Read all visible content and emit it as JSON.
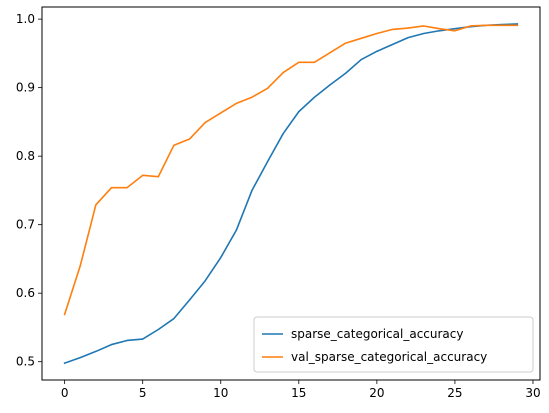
{
  "chart_data": {
    "type": "line",
    "x": [
      0,
      1,
      2,
      3,
      4,
      5,
      6,
      7,
      8,
      9,
      10,
      11,
      12,
      13,
      14,
      15,
      16,
      17,
      18,
      19,
      20,
      21,
      22,
      23,
      24,
      25,
      26,
      27,
      28,
      29
    ],
    "series": [
      {
        "name": "sparse_categorical_accuracy",
        "color": "#1f77b4",
        "values": [
          0.498,
          0.506,
          0.515,
          0.525,
          0.531,
          0.533,
          0.547,
          0.563,
          0.59,
          0.618,
          0.652,
          0.692,
          0.75,
          0.792,
          0.833,
          0.865,
          0.886,
          0.904,
          0.921,
          0.941,
          0.953,
          0.963,
          0.973,
          0.979,
          0.983,
          0.986,
          0.989,
          0.991,
          0.992,
          0.993
        ]
      },
      {
        "name": "val_sparse_categorical_accuracy",
        "color": "#ff7f0e",
        "values": [
          0.569,
          0.64,
          0.729,
          0.754,
          0.754,
          0.772,
          0.77,
          0.816,
          0.825,
          0.849,
          0.863,
          0.877,
          0.886,
          0.899,
          0.922,
          0.937,
          0.937,
          0.951,
          0.965,
          0.972,
          0.979,
          0.985,
          0.987,
          0.99,
          0.986,
          0.983,
          0.99,
          0.991,
          0.991,
          0.991
        ]
      }
    ],
    "x_ticks": [
      0,
      5,
      10,
      15,
      20,
      25,
      30
    ],
    "y_ticks": [
      0.5,
      0.6,
      0.7,
      0.8,
      0.9,
      1.0
    ],
    "x_tick_labels": [
      "0",
      "5",
      "10",
      "15",
      "20",
      "25",
      "30"
    ],
    "y_tick_labels": [
      "0.5",
      "0.6",
      "0.7",
      "0.8",
      "0.9",
      "1.0"
    ],
    "xlim": [
      -1.45,
      30.45
    ],
    "ylim": [
      0.4733,
      1.0177
    ],
    "xlabel": "",
    "ylabel": "",
    "title": "",
    "grid": false,
    "legend_position": "lower-right"
  }
}
